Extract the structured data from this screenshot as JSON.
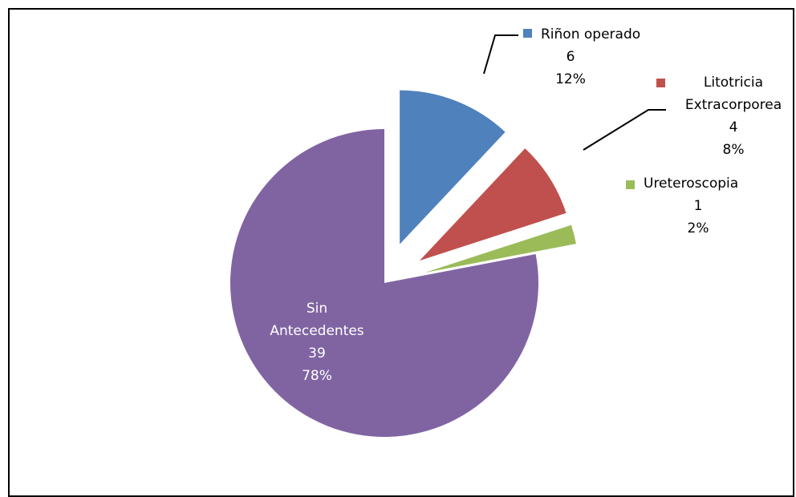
{
  "chart_data": {
    "type": "pie",
    "title": "",
    "slices": [
      {
        "name": "Riñon operado",
        "value": 6,
        "percent": "12%",
        "color": "#4F81BD",
        "exploded": true
      },
      {
        "name": "Litotricia Extracorporea",
        "value": 4,
        "percent": "8%",
        "color": "#C0504D",
        "exploded": true
      },
      {
        "name": "Ureteroscopia",
        "value": 1,
        "percent": "2%",
        "color": "#9BBB59",
        "exploded": true
      },
      {
        "name": "Sin Antecedentes",
        "value": 39,
        "percent": "78%",
        "color": "#8064A2",
        "exploded": false
      }
    ],
    "labels": [
      {
        "lines": [
          "Riñon operado",
          "6",
          "12%"
        ]
      },
      {
        "lines": [
          "Litotricia",
          "Extracorporea",
          "4",
          "8%"
        ]
      },
      {
        "lines": [
          "Ureteroscopia",
          "1",
          "2%"
        ]
      },
      {
        "lines": [
          "Sin",
          "Antecedentes",
          "39",
          "78%"
        ]
      }
    ],
    "legend": "none",
    "start_angle": "12 o'clock, clockwise"
  }
}
